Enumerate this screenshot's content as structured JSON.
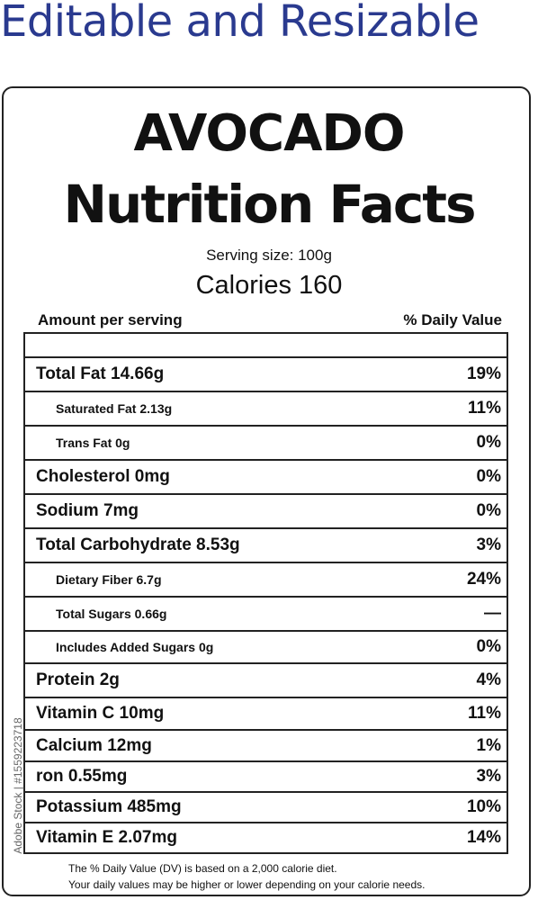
{
  "banner": "Editable and Resizable",
  "label": {
    "title_line1": "AVOCADO",
    "title_line2": "Nutrition Facts",
    "serving": "Serving size: 100g",
    "calories": "Calories 160",
    "amount_header": "Amount per serving",
    "dv_header": "% Daily Value"
  },
  "rows": [
    {
      "label": "Total Fat 14.66g",
      "pct": "19%"
    },
    {
      "label": "Saturated Fat  2.13g",
      "pct": "11%"
    },
    {
      "label": "Trans Fat 0g",
      "pct": "0%"
    },
    {
      "label": "Cholesterol 0mg",
      "pct": "0%"
    },
    {
      "label": "Sodium 7mg",
      "pct": "0%"
    },
    {
      "label": "Total Carbohydrate  8.53g",
      "pct": "3%"
    },
    {
      "label": "Dietary Fiber  6.7g",
      "pct": "24%"
    },
    {
      "label": "Total Sugars 0.66g",
      "pct": "—"
    },
    {
      "label": "Includes Added Sugars 0g",
      "pct": "0%"
    },
    {
      "label": "Protein 2g",
      "pct": "4%"
    },
    {
      "label": "Vitamin C  10mg",
      "pct": "11%"
    },
    {
      "label": "Calcium  12mg",
      "pct": "1%"
    },
    {
      "label": "ron  0.55mg",
      "pct": "3%"
    },
    {
      "label": "Potassium  485mg",
      "pct": "10%"
    },
    {
      "label": "Vitamin E  2.07mg",
      "pct": "14%"
    }
  ],
  "footnote": {
    "line1": "The % Daily Value (DV) is based on a 2,000 calorie diet.",
    "line2": "Your daily values may be higher or lower depending on your calorie needs."
  },
  "watermark": "Adobe Stock | #1559223718"
}
